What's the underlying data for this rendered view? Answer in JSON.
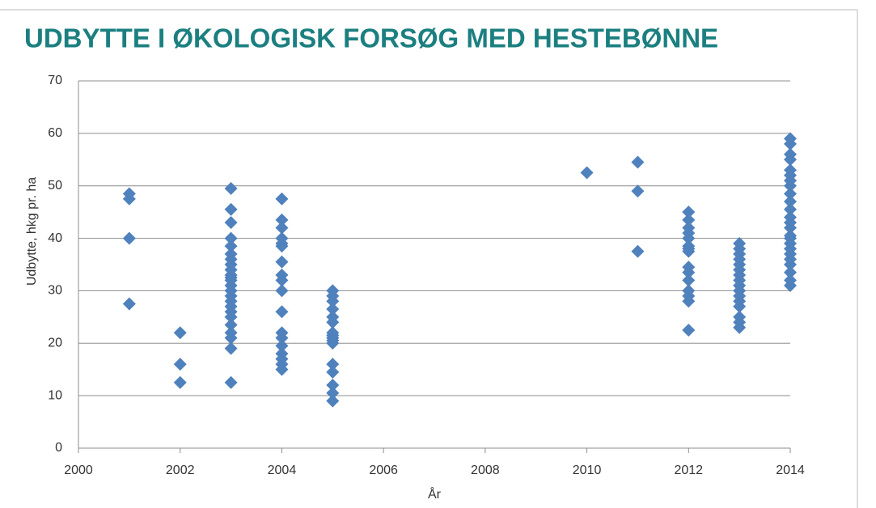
{
  "chart_data": {
    "type": "scatter",
    "title": "UDBYTTE I ØKOLOGISK FORSØG MED HESTEBØNNE",
    "x_label": "År",
    "y_label": "Udbytte, hkg pr. ha",
    "color": "#4f81bd",
    "grid": true,
    "xlim": [
      2000,
      2014
    ],
    "xticks": [
      2000,
      2002,
      2004,
      2006,
      2008,
      2010,
      2012,
      2014
    ],
    "ylim": [
      0,
      70
    ],
    "yticks": [
      0,
      10,
      20,
      30,
      40,
      50,
      60,
      70
    ],
    "x": [
      2001,
      2001,
      2001,
      2001,
      2002,
      2002,
      2002,
      2003,
      2003,
      2003,
      2003,
      2003,
      2003,
      2003,
      2003,
      2003,
      2003,
      2003,
      2003,
      2003,
      2003,
      2003,
      2003,
      2003,
      2003,
      2003,
      2003,
      2003,
      2003,
      2003,
      2003,
      2004,
      2004,
      2004,
      2004,
      2004,
      2004,
      2004,
      2004,
      2004,
      2004,
      2004,
      2004,
      2004,
      2004,
      2004,
      2004,
      2004,
      2004,
      2005,
      2005,
      2005,
      2005,
      2005,
      2005,
      2005,
      2005,
      2005,
      2005,
      2005,
      2005,
      2005,
      2005,
      2005,
      2005,
      2010,
      2011,
      2011,
      2011,
      2012,
      2012,
      2012,
      2012,
      2012,
      2012,
      2012,
      2012,
      2012,
      2012,
      2012,
      2012,
      2012,
      2012,
      2012,
      2013,
      2013,
      2013,
      2013,
      2013,
      2013,
      2013,
      2013,
      2013,
      2013,
      2013,
      2013,
      2013,
      2013,
      2013,
      2013,
      2014,
      2014,
      2014,
      2014,
      2014,
      2014,
      2014,
      2014,
      2014,
      2014,
      2014,
      2014,
      2014,
      2014,
      2014,
      2014,
      2014,
      2014,
      2014,
      2014,
      2014,
      2014,
      2014,
      2014
    ],
    "y": [
      48.5,
      47.5,
      40,
      27.5,
      22,
      16,
      12.5,
      49.5,
      45.5,
      43,
      40,
      38.5,
      37,
      36,
      35,
      34,
      33,
      32.5,
      32,
      31,
      30,
      29,
      28,
      27,
      26,
      25,
      23.5,
      22,
      21,
      19,
      12.5,
      47.5,
      43.5,
      42,
      40,
      39,
      38.5,
      35.5,
      33,
      32,
      30,
      26,
      22,
      21,
      19.5,
      18,
      17,
      16,
      15,
      30,
      29,
      28,
      26.5,
      25,
      24,
      22,
      21.5,
      21,
      20.5,
      20,
      16,
      14.5,
      12,
      10.5,
      9,
      52.5,
      54.5,
      49,
      37.5,
      45,
      43.5,
      42,
      41,
      40,
      38.5,
      38,
      37.5,
      34.5,
      33.5,
      32,
      30,
      29,
      28,
      22.5,
      39,
      38,
      37,
      36,
      35,
      34,
      33,
      32,
      31,
      30,
      29,
      28,
      27,
      25,
      24,
      23,
      59,
      58,
      56,
      55,
      53,
      52,
      51,
      50,
      48.5,
      47,
      45.5,
      44,
      43,
      42,
      40.5,
      40,
      39,
      38,
      37,
      36,
      35,
      33.5,
      32,
      31
    ]
  }
}
